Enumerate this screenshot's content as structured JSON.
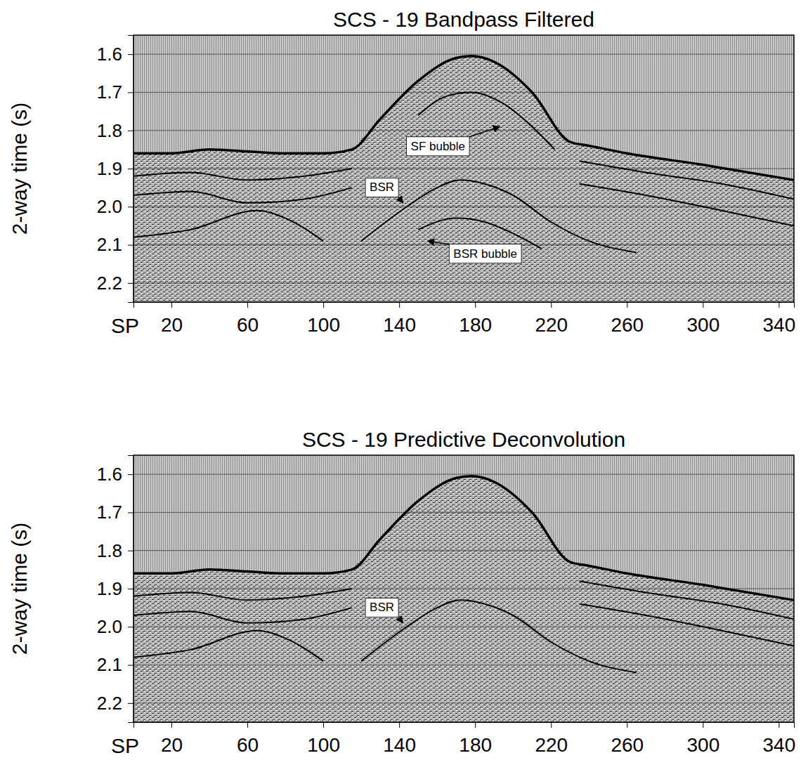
{
  "chart_data": [
    {
      "type": "line",
      "title": "SCS -  19 Bandpass Filtered",
      "y_label": "2-way time (s)",
      "x_label": "SP",
      "xlim": [
        0,
        348
      ],
      "ylim": [
        1.55,
        2.25
      ],
      "xticks": [
        20,
        60,
        100,
        140,
        180,
        220,
        260,
        300,
        340
      ],
      "yticks": [
        1.6,
        1.7,
        1.8,
        1.9,
        {
          "value": 2,
          "label": "2.0"
        },
        2.1,
        2.2
      ],
      "grid": true,
      "color": "#000000",
      "series": [
        {
          "x": [
            0,
            20,
            40,
            60,
            80,
            100,
            115,
            130,
            150,
            170,
            178,
            190,
            210,
            230,
            240,
            260,
            300,
            348
          ],
          "values": [
            1.86,
            1.86,
            1.85,
            1.855,
            1.86,
            1.86,
            1.85,
            1.77,
            1.67,
            1.61,
            1.605,
            1.62,
            1.7,
            1.83,
            1.84,
            1.86,
            1.89,
            1.93
          ]
        },
        {
          "x": [
            120,
            144,
            160,
            172,
            185,
            200,
            220,
            240,
            265
          ],
          "values": [
            2.09,
            2.0,
            1.95,
            1.93,
            1.94,
            1.97,
            2.04,
            2.09,
            2.12
          ]
        },
        {
          "x": [
            150,
            165,
            178,
            195,
            210,
            222
          ],
          "values": [
            1.76,
            1.71,
            1.7,
            1.73,
            1.79,
            1.85
          ]
        },
        {
          "x": [
            150,
            170,
            185,
            200,
            215
          ],
          "values": [
            2.06,
            2.03,
            2.04,
            2.07,
            2.11
          ]
        },
        {
          "x": [
            0,
            30,
            60,
            90,
            115
          ],
          "values": [
            1.92,
            1.91,
            1.93,
            1.92,
            1.9
          ]
        },
        {
          "x": [
            0,
            30,
            60,
            90,
            115
          ],
          "values": [
            1.97,
            1.96,
            1.99,
            1.98,
            1.95
          ]
        },
        {
          "x": [
            0,
            30,
            65,
            80,
            100
          ],
          "values": [
            2.08,
            2.06,
            2.01,
            2.03,
            2.09
          ]
        },
        {
          "x": [
            235,
            270,
            310,
            348
          ],
          "values": [
            1.88,
            1.91,
            1.94,
            1.98
          ]
        },
        {
          "x": [
            235,
            270,
            310,
            348
          ],
          "values": [
            1.94,
            1.97,
            2.01,
            2.05
          ]
        }
      ],
      "annotations": [
        {
          "text": "SF bubble",
          "x": 193,
          "y": 1.79
        },
        {
          "text": "BSR",
          "x": 142,
          "y": 1.99
        },
        {
          "text": "BSR  bubble",
          "x": 155,
          "y": 2.09
        }
      ]
    },
    {
      "type": "line",
      "title": "SCS -  19 Predictive Deconvolution",
      "y_label": "2-way time (s)",
      "x_label": "SP",
      "xlim": [
        0,
        348
      ],
      "ylim": [
        1.55,
        2.25
      ],
      "xticks": [
        20,
        60,
        100,
        140,
        180,
        220,
        260,
        300,
        340
      ],
      "yticks": [
        1.6,
        1.7,
        1.8,
        1.9,
        {
          "value": 2,
          "label": "2.0"
        },
        2.1,
        2.2
      ],
      "grid": true,
      "color": "#000000",
      "series": [
        {
          "x": [
            0,
            20,
            40,
            60,
            80,
            100,
            115,
            130,
            150,
            170,
            178,
            190,
            210,
            230,
            240,
            260,
            300,
            348
          ],
          "values": [
            1.86,
            1.86,
            1.85,
            1.855,
            1.86,
            1.86,
            1.85,
            1.77,
            1.67,
            1.61,
            1.605,
            1.62,
            1.7,
            1.83,
            1.84,
            1.86,
            1.89,
            1.93
          ]
        },
        {
          "x": [
            120,
            144,
            160,
            172,
            185,
            200,
            220,
            240,
            265
          ],
          "values": [
            2.09,
            2.0,
            1.95,
            1.93,
            1.94,
            1.97,
            2.04,
            2.09,
            2.12
          ]
        },
        {
          "x": [
            0,
            30,
            60,
            90,
            115
          ],
          "values": [
            1.92,
            1.91,
            1.93,
            1.92,
            1.9
          ]
        },
        {
          "x": [
            0,
            30,
            60,
            90,
            115
          ],
          "values": [
            1.97,
            1.96,
            1.99,
            1.98,
            1.95
          ]
        },
        {
          "x": [
            0,
            30,
            65,
            80,
            100
          ],
          "values": [
            2.08,
            2.06,
            2.01,
            2.03,
            2.09
          ]
        },
        {
          "x": [
            235,
            270,
            310,
            348
          ],
          "values": [
            1.88,
            1.91,
            1.94,
            1.98
          ]
        },
        {
          "x": [
            235,
            270,
            310,
            348
          ],
          "values": [
            1.94,
            1.97,
            2.01,
            2.05
          ]
        }
      ],
      "annotations": [
        {
          "text": "BSR",
          "x": 142,
          "y": 1.99
        }
      ]
    }
  ]
}
